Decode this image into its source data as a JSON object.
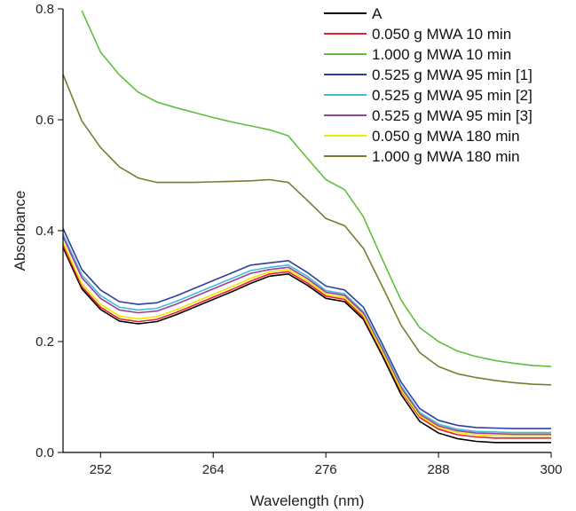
{
  "chart_data": {
    "type": "line",
    "title": "",
    "xlabel": "Wavelength (nm)",
    "ylabel": "Absorbance",
    "xlim": [
      248,
      300
    ],
    "ylim": [
      0.0,
      0.8
    ],
    "xticks": [
      252,
      264,
      276,
      288,
      300
    ],
    "yticks": [
      0.0,
      0.2,
      0.4,
      0.6,
      0.8
    ],
    "xtick_labels": [
      "252",
      "264",
      "276",
      "288",
      "300"
    ],
    "ytick_labels": [
      "0.0",
      "0.2",
      "0.4",
      "0.6",
      "0.8"
    ],
    "grid": false,
    "legend_position": "top-right",
    "x": [
      248,
      250,
      252,
      254,
      256,
      258,
      260,
      262,
      264,
      266,
      268,
      270,
      272,
      274,
      276,
      278,
      280,
      282,
      284,
      286,
      288,
      290,
      292,
      294,
      296,
      298,
      300
    ],
    "series": [
      {
        "name": "A",
        "color": "#000000",
        "values": [
          0.37,
          0.295,
          0.258,
          0.237,
          0.232,
          0.236,
          0.248,
          0.262,
          0.276,
          0.29,
          0.305,
          0.318,
          0.322,
          0.302,
          0.278,
          0.272,
          0.24,
          0.175,
          0.105,
          0.056,
          0.035,
          0.025,
          0.02,
          0.018,
          0.018,
          0.018,
          0.018
        ]
      },
      {
        "name": "0.050 g MWA 10 min",
        "color": "#e8202a",
        "values": [
          0.374,
          0.299,
          0.262,
          0.241,
          0.236,
          0.24,
          0.252,
          0.266,
          0.28,
          0.294,
          0.309,
          0.322,
          0.326,
          0.306,
          0.282,
          0.276,
          0.244,
          0.18,
          0.111,
          0.063,
          0.042,
          0.032,
          0.028,
          0.026,
          0.026,
          0.026,
          0.026
        ]
      },
      {
        "name": "1.000 g MWA 10 min",
        "color": "#5fbf3c",
        "values": [
          null,
          0.797,
          0.722,
          0.681,
          0.65,
          0.632,
          0.622,
          0.613,
          0.604,
          0.596,
          0.589,
          0.582,
          0.571,
          0.531,
          0.492,
          0.474,
          0.425,
          0.349,
          0.275,
          0.225,
          0.2,
          0.183,
          0.173,
          0.166,
          0.161,
          0.157,
          0.155
        ]
      },
      {
        "name": "0.525 g MWA 95 min [1]",
        "color": "#2f3f9f",
        "values": [
          0.404,
          0.33,
          0.293,
          0.272,
          0.267,
          0.27,
          0.282,
          0.296,
          0.31,
          0.324,
          0.338,
          0.342,
          0.346,
          0.325,
          0.3,
          0.293,
          0.262,
          0.196,
          0.127,
          0.079,
          0.058,
          0.049,
          0.045,
          0.044,
          0.043,
          0.043,
          0.043
        ]
      },
      {
        "name": "0.525 g MWA 95 min [2]",
        "color": "#44bcd8",
        "values": [
          0.394,
          0.32,
          0.283,
          0.262,
          0.257,
          0.26,
          0.272,
          0.286,
          0.3,
          0.314,
          0.328,
          0.334,
          0.338,
          0.318,
          0.292,
          0.286,
          0.254,
          0.189,
          0.12,
          0.072,
          0.051,
          0.042,
          0.038,
          0.037,
          0.036,
          0.036,
          0.036
        ]
      },
      {
        "name": "0.525 g MWA 95 min [3]",
        "color": "#9b3fa0",
        "values": [
          0.389,
          0.315,
          0.278,
          0.257,
          0.252,
          0.255,
          0.267,
          0.281,
          0.295,
          0.309,
          0.323,
          0.33,
          0.334,
          0.314,
          0.289,
          0.283,
          0.251,
          0.186,
          0.117,
          0.069,
          0.048,
          0.039,
          0.035,
          0.034,
          0.033,
          0.033,
          0.033
        ]
      },
      {
        "name": "0.050 g MWA 180 min",
        "color": "#f2e600",
        "values": [
          0.379,
          0.304,
          0.267,
          0.246,
          0.241,
          0.245,
          0.257,
          0.271,
          0.285,
          0.299,
          0.314,
          0.326,
          0.33,
          0.31,
          0.285,
          0.279,
          0.247,
          0.182,
          0.113,
          0.066,
          0.045,
          0.036,
          0.032,
          0.03,
          0.03,
          0.03,
          0.03
        ]
      },
      {
        "name": "1.000 g MWA 180 min",
        "color": "#7d7a30",
        "values": [
          0.682,
          0.598,
          0.55,
          0.515,
          0.495,
          0.487,
          0.487,
          0.487,
          0.488,
          0.489,
          0.49,
          0.492,
          0.487,
          0.455,
          0.422,
          0.409,
          0.368,
          0.3,
          0.23,
          0.18,
          0.155,
          0.142,
          0.135,
          0.13,
          0.126,
          0.123,
          0.122
        ]
      }
    ]
  }
}
